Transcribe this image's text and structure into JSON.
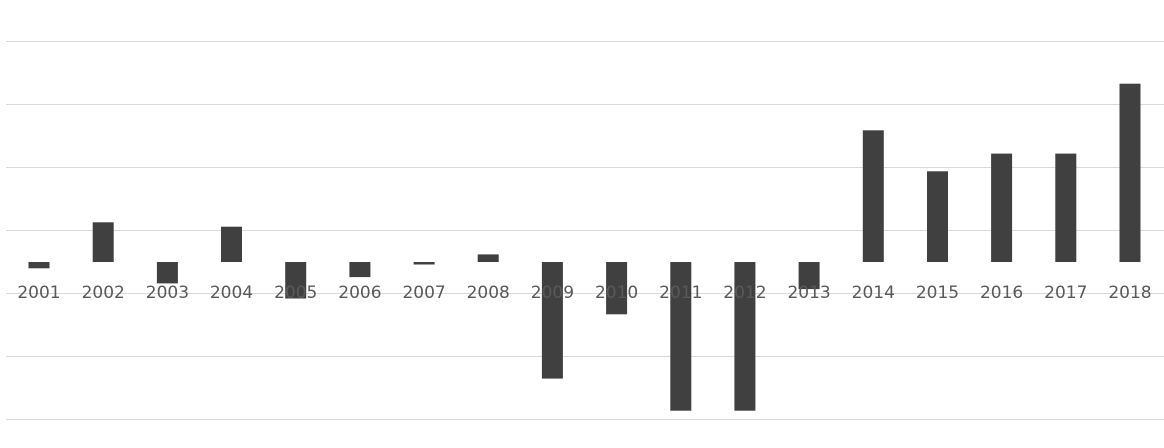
{
  "chart_data": {
    "type": "bar",
    "title": "",
    "xlabel": "",
    "ylabel": "",
    "categories": [
      "2001",
      "2002",
      "2003",
      "2004",
      "2005",
      "2006",
      "2007",
      "2008",
      "2009",
      "2010",
      "2011",
      "2012",
      "2013",
      "2014",
      "2015",
      "2016",
      "2017",
      "2018"
    ],
    "series": [
      {
        "values": [
          -0.1,
          0.63,
          -0.34,
          0.56,
          -0.58,
          -0.24,
          -0.04,
          0.12,
          -1.85,
          -0.83,
          -2.36,
          -2.36,
          -0.43,
          2.09,
          1.44,
          1.72,
          1.72,
          2.83
        ]
      }
    ],
    "ylim": [
      -2.5,
      4
    ],
    "grid": true,
    "gridline_step": 1,
    "legend": "none",
    "colors": {
      "bar": "#404040",
      "grid": "#d9d9d9",
      "tick_text": "#595959"
    }
  }
}
